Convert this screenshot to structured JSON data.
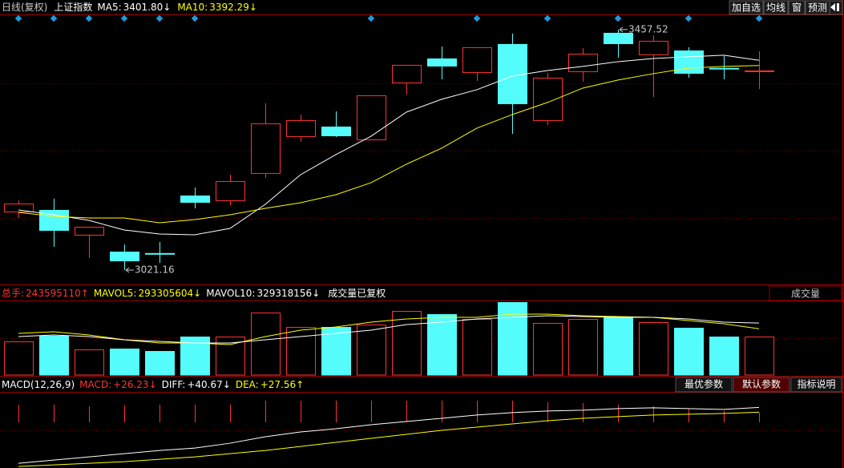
{
  "header": {
    "period": "日线(复权)",
    "symbol": "上证指数",
    "buttons": [
      "加自选",
      "均线",
      "窗",
      "预测"
    ]
  },
  "controls": {
    "volume_selector": "成交量",
    "macd_buttons": [
      "最优参数",
      "默认参数",
      "指标说明"
    ]
  },
  "chart_data": [
    {
      "type": "candlestick",
      "up_color": "#ff3232",
      "down_color": "#54fcfc",
      "ylim": [
        2995,
        3485
      ],
      "open": [
        3127.3,
        3130.3,
        3085.2,
        3054.6,
        3052.0,
        3156.4,
        3147.7,
        3197.2,
        3264.1,
        3281.5,
        3258.2,
        3361.5,
        3405.1,
        3380.4,
        3431.3,
        3293.2,
        3381.8,
        3451.6,
        3412.4,
        3419.6,
        3388.0,
        3383.0
      ],
      "high": [
        3147.7,
        3150.6,
        3099.7,
        3067.7,
        3072.1,
        3171.0,
        3194.2,
        3323.7,
        3303.3,
        3309.2,
        3338.2,
        3393.5,
        3427.0,
        3425.5,
        3450.2,
        3378.9,
        3424.0,
        3457.52,
        3447.3,
        3425.5,
        3409.5,
        3418.2
      ],
      "low": [
        3115.7,
        3063.4,
        3043.0,
        3021.16,
        3034.3,
        3133.2,
        3139.0,
        3188.4,
        3253.9,
        3262.6,
        3258.2,
        3339.7,
        3367.3,
        3364.4,
        3268.4,
        3284.4,
        3362.9,
        3406.5,
        3335.3,
        3370.2,
        3367.3,
        3349.8
      ],
      "close": [
        3141.9,
        3093.9,
        3099.7,
        3038.6,
        3051.7,
        3144.8,
        3182.6,
        3287.3,
        3293.2,
        3265.5,
        3338.2,
        3393.5,
        3392.0,
        3425.5,
        3323.7,
        3370.2,
        3413.8,
        3432.7,
        3437.1,
        3378.9,
        3387.6,
        3383.3
      ],
      "series": [
        {
          "name": "MA5:",
          "color": "#ffffff",
          "last_label": "3401.80",
          "trend": "↓",
          "values": [
            3130.3,
            3121.5,
            3111.3,
            3093.9,
            3086.6,
            3085.2,
            3096.8,
            3140.4,
            3194.2,
            3230.6,
            3264.1,
            3307.7,
            3331.0,
            3348.4,
            3373.2,
            3383.3,
            3390.6,
            3399.3,
            3405.1,
            3408.1,
            3411.0,
            3401.8
          ]
        },
        {
          "name": "MA10:",
          "color": "#ffff00",
          "last_label": "3392.29",
          "trend": "↓",
          "values": [
            3125.9,
            3118.6,
            3115.7,
            3115.7,
            3107.0,
            3112.8,
            3121.5,
            3133.2,
            3143.3,
            3157.9,
            3179.7,
            3213.2,
            3242.2,
            3278.6,
            3303.3,
            3325.2,
            3351.3,
            3365.9,
            3377.5,
            3387.6,
            3390.6,
            3392.29
          ]
        }
      ],
      "annotations": [
        {
          "value": 3457.52,
          "text": "3457.52"
        },
        {
          "value": 3021.16,
          "text": "3021.16"
        }
      ]
    },
    {
      "type": "volume",
      "title": "总手:",
      "last_label": "243595110",
      "trend": "↑",
      "note": "成交量已复权",
      "ylim": [
        0,
        467000000
      ],
      "values": [
        213100000,
        248700000,
        162400000,
        167500000,
        152200000,
        243600000,
        243600000,
        395800000,
        304500000,
        304500000,
        319700000,
        406000000,
        385700000,
        355200000,
        461800000,
        329900000,
        355200000,
        370500000,
        335000000,
        299400000,
        243600000,
        243595110
      ],
      "series": [
        {
          "name": "MAVOL5:",
          "color": "#ffff00",
          "last_label": "293305604",
          "trend": "↓",
          "values": [
            263900000,
            274100000,
            253800000,
            223300000,
            203000000,
            203000000,
            192900000,
            243600000,
            284200000,
            304500000,
            335000000,
            355300000,
            365400000,
            365400000,
            385700000,
            385700000,
            375600000,
            370500000,
            365400000,
            345100000,
            324800000,
            293305604
          ]
        },
        {
          "name": "MAVOL10:",
          "color": "#ffffff",
          "last_label": "329318156",
          "trend": "↓",
          "values": [
            243600000,
            253800000,
            243600000,
            223300000,
            213200000,
            203000000,
            203000000,
            223300000,
            243600000,
            263900000,
            284200000,
            319700000,
            335000000,
            355300000,
            365400000,
            375600000,
            370500000,
            365400000,
            365400000,
            355300000,
            335000000,
            329318156
          ]
        }
      ]
    },
    {
      "type": "macd",
      "title": "MACD(12,26,9)",
      "name": "MACD:",
      "color": "#ff3232",
      "last_label": "+26.23",
      "trend": "↓",
      "ylim": [
        -125,
        81
      ],
      "values": [
        48.4,
        48.4,
        44,
        46.2,
        48.4,
        48.4,
        48.4,
        59.4,
        59.4,
        59.4,
        59.4,
        59.4,
        59.4,
        59.4,
        59.4,
        55,
        52.8,
        48.4,
        44,
        37.4,
        30.8,
        26.23
      ],
      "series": [
        {
          "name": "DIFF:",
          "color": "#ffffff",
          "last_label": "+40.67",
          "trend": "↓",
          "values": [
            -112.2,
            -103.4,
            -94.6,
            -85.8,
            -77,
            -70.4,
            -57.2,
            -39.6,
            -26.4,
            -17.6,
            -6.6,
            2.2,
            11,
            19.8,
            26.4,
            30.8,
            33,
            37.4,
            39.6,
            37.4,
            35.2,
            40.67
          ]
        },
        {
          "name": "DEA:",
          "color": "#ffff00",
          "last_label": "+27.56",
          "trend": "↑",
          "values": [
            -121,
            -116.6,
            -112.2,
            -107.8,
            -101.2,
            -94.6,
            -85.8,
            -77,
            -66,
            -55,
            -44,
            -33,
            -22,
            -13.2,
            -4.4,
            4.4,
            11,
            15.4,
            19.8,
            22,
            24.2,
            27.56
          ]
        }
      ]
    }
  ]
}
